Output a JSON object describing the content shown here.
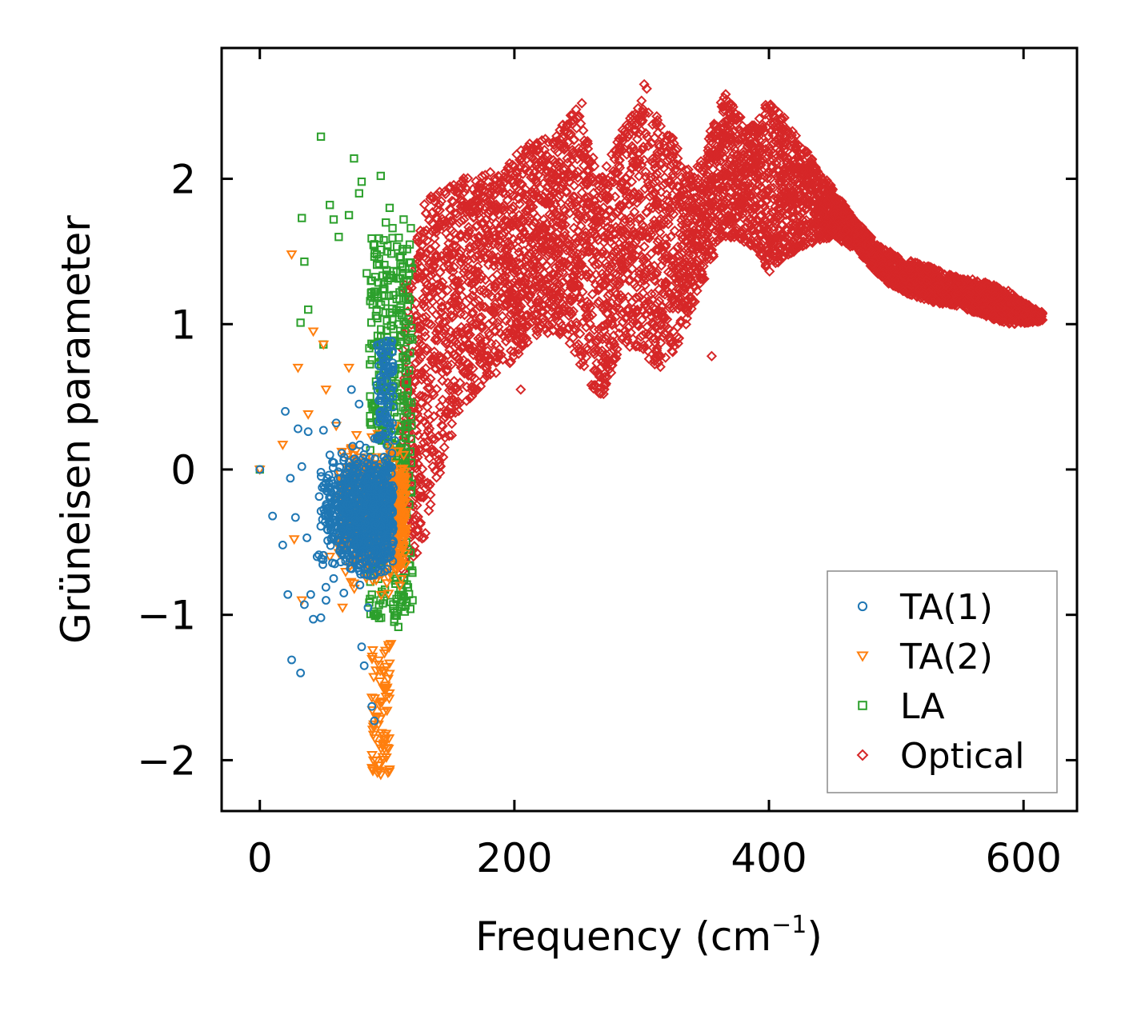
{
  "chart_data": {
    "type": "scatter",
    "title": "",
    "xlabel": "Frequency (cm",
    "xlabel_sup": "−1",
    "xlabel_suffix": ")",
    "ylabel": "Grüneisen parameter",
    "xlim": [
      -30,
      642
    ],
    "ylim": [
      -2.35,
      2.9
    ],
    "x_ticks": [
      0,
      200,
      400,
      600
    ],
    "x_tick_labels": [
      "0",
      "200",
      "400",
      "600"
    ],
    "y_ticks": [
      -2,
      -1,
      0,
      1,
      2
    ],
    "y_tick_labels": [
      "−2",
      "−1",
      "0",
      "1",
      "2"
    ],
    "grid": false,
    "legend_position": "lower-right",
    "series": [
      {
        "name": "TA(1)",
        "label": "TA(1)",
        "marker": "circle",
        "color": "#1f77b4",
        "x_range": [
          0,
          110
        ],
        "y_range": [
          -1.75,
          0.95
        ],
        "points": [
          [
            0,
            0.0
          ],
          [
            10,
            -0.32
          ],
          [
            18,
            -0.52
          ],
          [
            20,
            0.4
          ],
          [
            22,
            -0.86
          ],
          [
            25,
            -1.31
          ],
          [
            24,
            -0.06
          ],
          [
            28,
            -0.33
          ],
          [
            30,
            0.28
          ],
          [
            32,
            -1.4
          ],
          [
            33,
            0.02
          ],
          [
            35,
            -0.93
          ],
          [
            37,
            -0.47
          ],
          [
            38,
            0.26
          ],
          [
            40,
            -0.86
          ],
          [
            42,
            -1.03
          ],
          [
            45,
            -0.6
          ],
          [
            48,
            -1.02
          ],
          [
            50,
            0.27
          ],
          [
            52,
            -0.9
          ],
          [
            55,
            0.1
          ],
          [
            58,
            -0.75
          ],
          [
            60,
            0.32
          ],
          [
            63,
            -0.2
          ],
          [
            66,
            -0.85
          ],
          [
            70,
            0.05
          ],
          [
            72,
            0.55
          ],
          [
            75,
            -0.35
          ],
          [
            78,
            0.45
          ],
          [
            80,
            -1.22
          ],
          [
            82,
            -1.35
          ],
          [
            85,
            -0.95
          ],
          [
            88,
            -1.63
          ],
          [
            90,
            -1.73
          ],
          [
            92,
            -0.15
          ],
          [
            95,
            0.4
          ],
          [
            98,
            -0.7
          ],
          [
            100,
            0.6
          ],
          [
            103,
            0.85
          ],
          [
            106,
            0.2
          ]
        ]
      },
      {
        "name": "TA(2)",
        "label": "TA(2)",
        "marker": "triangle-down",
        "color": "#ff7f0e",
        "x_range": [
          0,
          118
        ],
        "y_range": [
          -2.12,
          1.48
        ],
        "points": [
          [
            0,
            0.0
          ],
          [
            18,
            0.17
          ],
          [
            25,
            1.48
          ],
          [
            27,
            -0.48
          ],
          [
            30,
            0.7
          ],
          [
            33,
            -0.9
          ],
          [
            38,
            0.38
          ],
          [
            42,
            0.95
          ],
          [
            50,
            0.86
          ],
          [
            52,
            0.55
          ],
          [
            55,
            -0.6
          ],
          [
            60,
            0.3
          ],
          [
            65,
            -0.95
          ],
          [
            70,
            0.7
          ],
          [
            75,
            -0.45
          ],
          [
            80,
            0.0
          ],
          [
            88,
            -0.2
          ],
          [
            95,
            -2.1
          ],
          [
            97,
            -1.9
          ],
          [
            100,
            -1.5
          ],
          [
            103,
            -1.2
          ],
          [
            106,
            0.3
          ],
          [
            110,
            -0.8
          ],
          [
            113,
            0.1
          ]
        ]
      },
      {
        "name": "LA",
        "label": "LA",
        "marker": "square",
        "color": "#2ca02c",
        "x_range": [
          0,
          122
        ],
        "y_range": [
          -1.1,
          2.3
        ],
        "points": [
          [
            0,
            0.0
          ],
          [
            48,
            2.29
          ],
          [
            33,
            1.73
          ],
          [
            35,
            1.43
          ],
          [
            38,
            1.1
          ],
          [
            32,
            1.01
          ],
          [
            50,
            0.86
          ],
          [
            55,
            1.82
          ],
          [
            58,
            1.72
          ],
          [
            62,
            1.6
          ],
          [
            70,
            1.75
          ],
          [
            74,
            2.14
          ],
          [
            78,
            1.9
          ],
          [
            80,
            1.98
          ],
          [
            84,
            1.35
          ],
          [
            88,
            1.3
          ],
          [
            90,
            1.55
          ],
          [
            95,
            2.02
          ],
          [
            100,
            1.5
          ],
          [
            102,
            1.8
          ],
          [
            105,
            1.2
          ],
          [
            108,
            0.5
          ],
          [
            112,
            1.4
          ],
          [
            115,
            -0.5
          ],
          [
            118,
            0.8
          ],
          [
            120,
            -0.9
          ]
        ]
      },
      {
        "name": "Optical",
        "label": "Optical",
        "marker": "diamond",
        "color": "#d62728",
        "x_range": [
          112,
          615
        ],
        "y_range": [
          -0.75,
          2.66
        ],
        "upper_envelope": [
          [
            115,
            1.3
          ],
          [
            130,
            1.85
          ],
          [
            150,
            2.0
          ],
          [
            170,
            2.05
          ],
          [
            190,
            2.05
          ],
          [
            210,
            2.25
          ],
          [
            230,
            2.3
          ],
          [
            250,
            2.5
          ],
          [
            265,
            2.05
          ],
          [
            280,
            2.25
          ],
          [
            300,
            2.6
          ],
          [
            310,
            2.45
          ],
          [
            325,
            2.3
          ],
          [
            340,
            2.0
          ],
          [
            355,
            2.35
          ],
          [
            365,
            2.6
          ],
          [
            375,
            2.45
          ],
          [
            385,
            2.35
          ],
          [
            400,
            2.55
          ],
          [
            410,
            2.45
          ],
          [
            425,
            2.25
          ],
          [
            445,
            2.0
          ],
          [
            465,
            1.75
          ],
          [
            485,
            1.55
          ],
          [
            505,
            1.45
          ],
          [
            525,
            1.4
          ],
          [
            545,
            1.33
          ],
          [
            565,
            1.3
          ],
          [
            585,
            1.25
          ],
          [
            600,
            1.15
          ],
          [
            615,
            1.08
          ]
        ],
        "lower_envelope": [
          [
            115,
            -0.75
          ],
          [
            130,
            -0.45
          ],
          [
            145,
            0.1
          ],
          [
            160,
            0.45
          ],
          [
            180,
            0.6
          ],
          [
            200,
            0.75
          ],
          [
            215,
            0.9
          ],
          [
            230,
            0.95
          ],
          [
            245,
            0.85
          ],
          [
            260,
            0.55
          ],
          [
            270,
            0.5
          ],
          [
            285,
            0.9
          ],
          [
            300,
            0.75
          ],
          [
            315,
            0.7
          ],
          [
            330,
            0.85
          ],
          [
            345,
            1.2
          ],
          [
            360,
            1.55
          ],
          [
            375,
            1.6
          ],
          [
            390,
            1.5
          ],
          [
            400,
            1.35
          ],
          [
            410,
            1.45
          ],
          [
            430,
            1.55
          ],
          [
            450,
            1.6
          ],
          [
            470,
            1.5
          ],
          [
            490,
            1.3
          ],
          [
            510,
            1.2
          ],
          [
            530,
            1.15
          ],
          [
            550,
            1.12
          ],
          [
            570,
            1.05
          ],
          [
            590,
            1.0
          ],
          [
            615,
            1.02
          ]
        ],
        "outliers": [
          [
            253,
            2.52
          ],
          [
            302,
            2.65
          ],
          [
            304,
            2.62
          ],
          [
            287,
            2.33
          ],
          [
            270,
            0.52
          ],
          [
            205,
            0.55
          ],
          [
            476,
            1.55
          ],
          [
            355,
            0.78
          ]
        ]
      }
    ]
  }
}
